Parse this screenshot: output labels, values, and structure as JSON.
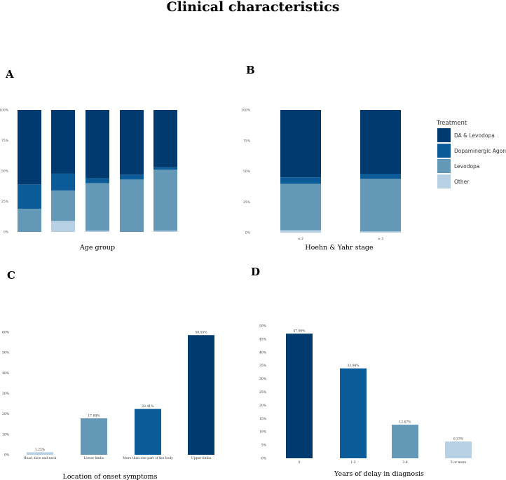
{
  "page": {
    "title": "Clinical characteristics"
  },
  "colors": {
    "da_levodopa": "#003a6e",
    "agonists": "#0b5c99",
    "levodopa": "#6399b7",
    "other": "#b7d0e4"
  },
  "legend": {
    "title": "Treatment",
    "items": [
      {
        "label": "DA & Levodopa",
        "color": "#003a6e"
      },
      {
        "label": "Dopaminergic Agonists",
        "color": "#0b5c99"
      },
      {
        "label": "Levodopa",
        "color": "#6399b7"
      },
      {
        "label": "Other",
        "color": "#b7d0e4"
      }
    ]
  },
  "chart_data": [
    {
      "panel": "A",
      "type": "bar",
      "stacked": true,
      "xlabel": "Age group",
      "ylabel": "",
      "ylim": [
        0,
        1
      ],
      "yticks": [
        "0%",
        "25%",
        "50%",
        "75%",
        "100%"
      ],
      "categories": [
        "",
        "",
        "",
        "",
        ""
      ],
      "series": [
        {
          "name": "Other",
          "color": "#b7d0e4",
          "values": [
            0.0,
            0.09,
            0.01,
            0.0,
            0.01
          ]
        },
        {
          "name": "Levodopa",
          "color": "#6399b7",
          "values": [
            0.19,
            0.25,
            0.39,
            0.43,
            0.5
          ]
        },
        {
          "name": "Dopaminergic Agonists",
          "color": "#0b5c99",
          "values": [
            0.2,
            0.14,
            0.04,
            0.04,
            0.02
          ]
        },
        {
          "name": "DA & Levodopa",
          "color": "#003a6e",
          "values": [
            0.61,
            0.52,
            0.56,
            0.53,
            0.47
          ]
        }
      ]
    },
    {
      "panel": "B",
      "type": "bar",
      "stacked": true,
      "xlabel": "Hoehn & Yahr stage",
      "ylabel": "",
      "ylim": [
        0,
        1
      ],
      "yticks": [
        "0%",
        "25%",
        "50%",
        "75%",
        "100%"
      ],
      "categories": [
        "≤ 2",
        "≥ 3"
      ],
      "series": [
        {
          "name": "Other",
          "color": "#b7d0e4",
          "values": [
            0.02,
            0.01
          ]
        },
        {
          "name": "Levodopa",
          "color": "#6399b7",
          "values": [
            0.38,
            0.43
          ]
        },
        {
          "name": "Dopaminergic Agonists",
          "color": "#0b5c99",
          "values": [
            0.05,
            0.04
          ]
        },
        {
          "name": "DA & Levodopa",
          "color": "#003a6e",
          "values": [
            0.55,
            0.52
          ]
        }
      ]
    },
    {
      "panel": "C",
      "type": "bar",
      "xlabel": "Location of onset symptoms",
      "ylabel": "",
      "ylim": [
        0,
        60
      ],
      "yticks": [
        "0%",
        "10%",
        "20%",
        "30%",
        "40%",
        "50%",
        "60%"
      ],
      "categories": [
        "Head, face and neck",
        "Lower limbs",
        "More than one part of the body",
        "Upper limbs"
      ],
      "values": [
        1.25,
        17.84,
        22.41,
        58.55
      ],
      "labels": [
        "1.25%",
        "17.84%",
        "22.41%",
        "58.55%"
      ],
      "colors": [
        "#b7d0e4",
        "#6399b7",
        "#0b5c99",
        "#003a6e"
      ]
    },
    {
      "panel": "D",
      "type": "bar",
      "xlabel": "Years of delay in diagnosis",
      "ylabel": "",
      "ylim": [
        0,
        50
      ],
      "yticks": [
        "0%",
        "5%",
        "10%",
        "15%",
        "20%",
        "25%",
        "30%",
        "35%",
        "40%",
        "45%",
        "50%"
      ],
      "categories": [
        "0",
        "1-2",
        "3-4",
        "5 or more"
      ],
      "values": [
        47.06,
        33.94,
        12.67,
        6.33
      ],
      "labels": [
        "47.06%",
        "33.94%",
        "12.67%",
        "6.33%"
      ],
      "colors": [
        "#003a6e",
        "#0b5c99",
        "#6399b7",
        "#b7d0e4"
      ]
    }
  ]
}
